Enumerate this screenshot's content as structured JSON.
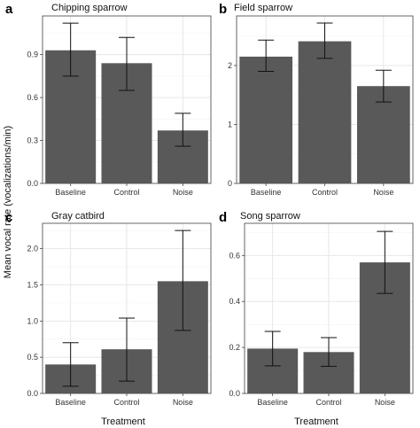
{
  "figure": {
    "ylabel": "Mean vocal rate (vocalizations/min)",
    "xlabel": "Treatment"
  },
  "chart_data": [
    {
      "type": "bar",
      "panel": "a",
      "title": "Chipping sparrow",
      "categories": [
        "Baseline",
        "Control",
        "Noise"
      ],
      "values": [
        0.93,
        0.84,
        0.37
      ],
      "error_low": [
        0.75,
        0.65,
        0.26
      ],
      "error_high": [
        1.12,
        1.02,
        0.49
      ],
      "yticks": [
        0.0,
        0.3,
        0.6,
        0.9
      ],
      "ytick_labels": [
        "0.0",
        "0.3",
        "0.6",
        "0.9"
      ],
      "ylim": [
        0,
        1.17
      ]
    },
    {
      "type": "bar",
      "panel": "b",
      "title": "Field sparrow",
      "categories": [
        "Baseline",
        "Control",
        "Noise"
      ],
      "values": [
        2.15,
        2.41,
        1.65
      ],
      "error_low": [
        1.9,
        2.12,
        1.38
      ],
      "error_high": [
        2.43,
        2.72,
        1.92
      ],
      "yticks": [
        0,
        1,
        2
      ],
      "ytick_labels": [
        "0",
        "1",
        "2"
      ],
      "ylim": [
        0,
        2.84
      ]
    },
    {
      "type": "bar",
      "panel": "c",
      "title": "Gray catbird",
      "categories": [
        "Baseline",
        "Control",
        "Noise"
      ],
      "values": [
        0.4,
        0.61,
        1.55
      ],
      "error_low": [
        0.1,
        0.17,
        0.87
      ],
      "error_high": [
        0.7,
        1.04,
        2.25
      ],
      "yticks": [
        0.0,
        0.5,
        1.0,
        1.5,
        2.0
      ],
      "ytick_labels": [
        "0.0",
        "0.5",
        "1.0",
        "1.5",
        "2.0"
      ],
      "ylim": [
        0,
        2.35
      ]
    },
    {
      "type": "bar",
      "panel": "d",
      "title": "Song sparrow",
      "categories": [
        "Baseline",
        "Control",
        "Noise"
      ],
      "values": [
        0.195,
        0.18,
        0.57
      ],
      "error_low": [
        0.12,
        0.118,
        0.435
      ],
      "error_high": [
        0.27,
        0.243,
        0.705
      ],
      "yticks": [
        0.0,
        0.2,
        0.4,
        0.6
      ],
      "ytick_labels": [
        "0.0",
        "0.2",
        "0.4",
        "0.6"
      ],
      "ylim": [
        0,
        0.74
      ]
    }
  ]
}
